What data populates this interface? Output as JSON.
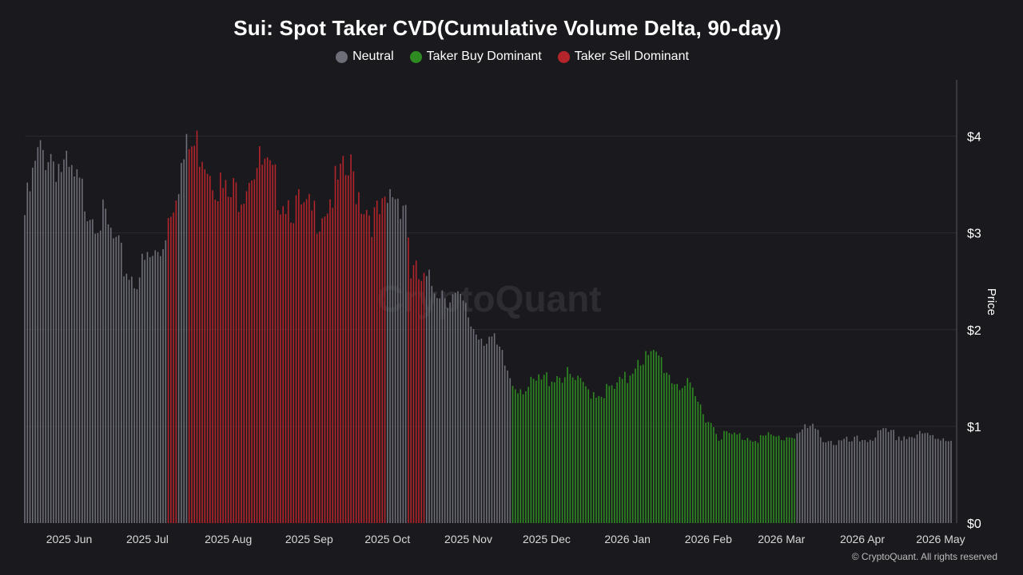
{
  "chart_data": {
    "type": "bar",
    "title": "Sui: Spot Taker CVD(Cumulative Volume Delta, 90-day)",
    "ylabel": "Price",
    "ylim": [
      0,
      4.5
    ],
    "y_ticks": [
      0,
      1,
      2,
      3,
      4
    ],
    "y_tick_labels": [
      "$0",
      "$1",
      "$2",
      "$3",
      "$4"
    ],
    "x_tick_labels": [
      "2025 Jun",
      "2025 Jul",
      "2025 Aug",
      "2025 Sep",
      "2025 Oct",
      "2025 Nov",
      "2025 Dec",
      "2026 Jan",
      "2026 Feb",
      "2026 Mar",
      "2026 Apr",
      "2026 May"
    ],
    "x_tick_dates": [
      "2025-06-01",
      "2025-07-01",
      "2025-08-01",
      "2025-09-01",
      "2025-10-01",
      "2025-11-01",
      "2025-12-01",
      "2026-01-01",
      "2026-02-01",
      "2026-03-01",
      "2026-04-01",
      "2026-05-01"
    ],
    "start_date": "2025-05-15",
    "end_date": "2026-05-05",
    "legend": [
      {
        "name": "Neutral",
        "color": "#6e6e78"
      },
      {
        "name": "Taker Buy Dominant",
        "color": "#2e8b22"
      },
      {
        "name": "Taker Sell Dominant",
        "color": "#b3242b"
      }
    ],
    "price_keyframes": [
      [
        "2025-05-15",
        3.3
      ],
      [
        "2025-05-20",
        3.9
      ],
      [
        "2025-05-24",
        4.0
      ],
      [
        "2025-05-28",
        3.85
      ],
      [
        "2025-06-01",
        3.7
      ],
      [
        "2025-06-08",
        3.45
      ],
      [
        "2025-06-15",
        3.2
      ],
      [
        "2025-06-22",
        2.75
      ],
      [
        "2025-06-26",
        2.62
      ],
      [
        "2025-07-01",
        2.8
      ],
      [
        "2025-07-06",
        2.9
      ],
      [
        "2025-07-09",
        3.3
      ],
      [
        "2025-07-13",
        3.75
      ],
      [
        "2025-07-17",
        4.0
      ],
      [
        "2025-07-22",
        4.05
      ],
      [
        "2025-07-29",
        3.6
      ],
      [
        "2025-08-01",
        3.45
      ],
      [
        "2025-08-06",
        3.6
      ],
      [
        "2025-08-10",
        3.85
      ],
      [
        "2025-08-14",
        3.8
      ],
      [
        "2025-08-19",
        3.6
      ],
      [
        "2025-08-25",
        3.45
      ],
      [
        "2025-08-30",
        3.3
      ],
      [
        "2025-09-03",
        3.3
      ],
      [
        "2025-09-08",
        3.45
      ],
      [
        "2025-09-13",
        3.65
      ],
      [
        "2025-09-17",
        3.75
      ],
      [
        "2025-09-21",
        3.5
      ],
      [
        "2025-09-26",
        3.25
      ],
      [
        "2025-09-30",
        3.3
      ],
      [
        "2025-10-03",
        3.55
      ],
      [
        "2025-10-08",
        3.45
      ],
      [
        "2025-10-10",
        2.7
      ],
      [
        "2025-10-15",
        2.55
      ],
      [
        "2025-10-20",
        2.55
      ],
      [
        "2025-10-25",
        2.45
      ],
      [
        "2025-10-30",
        2.3
      ],
      [
        "2025-11-04",
        2.05
      ],
      [
        "2025-11-09",
        2.0
      ],
      [
        "2025-11-14",
        1.75
      ],
      [
        "2025-11-18",
        1.5
      ],
      [
        "2025-11-24",
        1.45
      ],
      [
        "2025-12-01",
        1.55
      ],
      [
        "2025-12-06",
        1.6
      ],
      [
        "2025-12-10",
        1.55
      ],
      [
        "2025-12-15",
        1.45
      ],
      [
        "2025-12-21",
        1.4
      ],
      [
        "2025-12-27",
        1.43
      ],
      [
        "2026-01-01",
        1.55
      ],
      [
        "2026-01-05",
        1.8
      ],
      [
        "2026-01-09",
        1.75
      ],
      [
        "2026-01-13",
        1.78
      ],
      [
        "2026-01-18",
        1.55
      ],
      [
        "2026-01-24",
        1.45
      ],
      [
        "2026-01-30",
        1.2
      ],
      [
        "2026-02-05",
        0.95
      ],
      [
        "2026-02-12",
        0.93
      ],
      [
        "2026-02-20",
        0.92
      ],
      [
        "2026-03-01",
        0.91
      ],
      [
        "2026-03-08",
        0.97
      ],
      [
        "2026-03-12",
        1.02
      ],
      [
        "2026-03-17",
        0.92
      ],
      [
        "2026-03-22",
        0.86
      ],
      [
        "2026-03-29",
        0.87
      ],
      [
        "2026-04-04",
        0.92
      ],
      [
        "2026-04-09",
        0.96
      ],
      [
        "2026-04-15",
        0.93
      ],
      [
        "2026-04-25",
        0.93
      ],
      [
        "2026-05-04",
        0.92
      ]
    ],
    "segments": [
      {
        "start": "2025-05-15",
        "end": "2025-07-08",
        "regime": "Neutral"
      },
      {
        "start": "2025-07-09",
        "end": "2025-07-12",
        "regime": "Taker Sell Dominant"
      },
      {
        "start": "2025-07-13",
        "end": "2025-07-16",
        "regime": "Neutral"
      },
      {
        "start": "2025-07-17",
        "end": "2025-09-30",
        "regime": "Taker Sell Dominant"
      },
      {
        "start": "2025-10-01",
        "end": "2025-10-08",
        "regime": "Neutral"
      },
      {
        "start": "2025-10-09",
        "end": "2025-10-15",
        "regime": "Taker Sell Dominant"
      },
      {
        "start": "2025-10-16",
        "end": "2025-11-17",
        "regime": "Neutral"
      },
      {
        "start": "2025-11-18",
        "end": "2026-03-06",
        "regime": "Taker Buy Dominant"
      },
      {
        "start": "2026-03-07",
        "end": "2026-05-05",
        "regime": "Neutral"
      }
    ]
  },
  "watermark": "CryptoQuant",
  "credit": "© CryptoQuant. All rights reserved"
}
